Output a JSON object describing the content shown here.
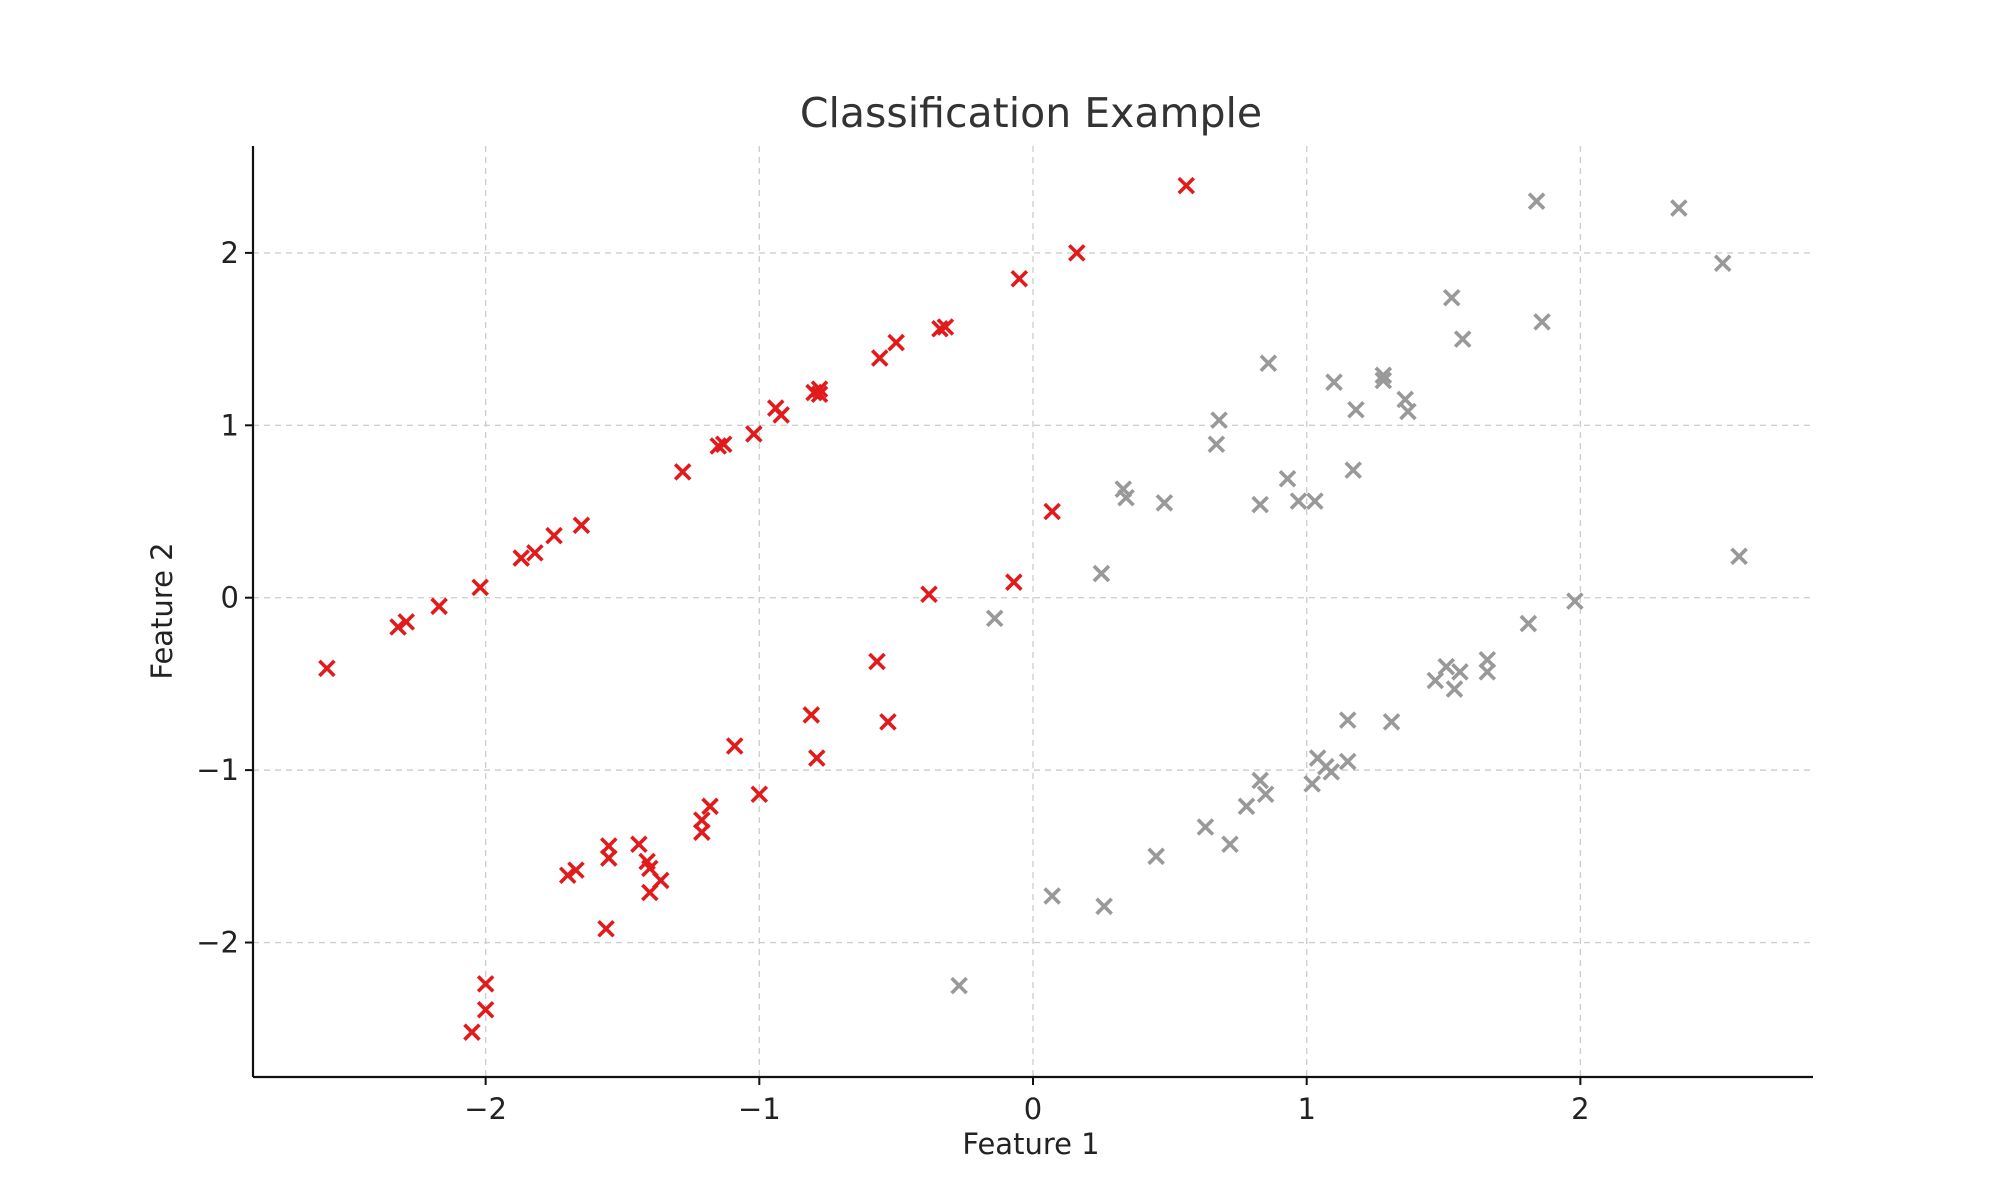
{
  "chart_data": {
    "type": "scatter",
    "title": "Classification Example",
    "xlabel": "Feature 1",
    "ylabel": "Feature 2",
    "xlim": [
      -2.85,
      2.85
    ],
    "ylim": [
      -2.78,
      2.62
    ],
    "xticks": [
      -2,
      -1,
      0,
      1,
      2
    ],
    "yticks": [
      -2,
      -1,
      0,
      1,
      2
    ],
    "xtick_labels": [
      "−2",
      "−1",
      "0",
      "1",
      "2"
    ],
    "ytick_labels": [
      "−2",
      "−1",
      "0",
      "1",
      "2"
    ],
    "grid": true,
    "marker": "x",
    "series": [
      {
        "color": "#e31a1c",
        "points": [
          [
            -2.58,
            -0.41
          ],
          [
            -2.32,
            -0.17
          ],
          [
            -2.29,
            -0.14
          ],
          [
            -2.17,
            -0.05
          ],
          [
            -2.02,
            0.06
          ],
          [
            -1.87,
            0.23
          ],
          [
            -1.82,
            0.26
          ],
          [
            -1.75,
            0.36
          ],
          [
            -1.65,
            0.42
          ],
          [
            -1.28,
            0.73
          ],
          [
            -1.15,
            0.88
          ],
          [
            -1.13,
            0.89
          ],
          [
            -1.02,
            0.95
          ],
          [
            -0.94,
            1.1
          ],
          [
            -0.92,
            1.06
          ],
          [
            -0.8,
            1.19
          ],
          [
            -0.78,
            1.21
          ],
          [
            -0.78,
            1.18
          ],
          [
            -0.56,
            1.39
          ],
          [
            -0.5,
            1.48
          ],
          [
            -0.34,
            1.56
          ],
          [
            -0.32,
            1.57
          ],
          [
            -0.05,
            1.85
          ],
          [
            0.16,
            2.0
          ],
          [
            0.56,
            2.39
          ],
          [
            0.07,
            0.5
          ],
          [
            -0.07,
            0.09
          ],
          [
            -0.38,
            0.02
          ],
          [
            -0.57,
            -0.37
          ],
          [
            -0.53,
            -0.72
          ],
          [
            -0.81,
            -0.68
          ],
          [
            -0.79,
            -0.93
          ],
          [
            -1.09,
            -0.86
          ],
          [
            -1.0,
            -1.14
          ],
          [
            -1.18,
            -1.21
          ],
          [
            -1.21,
            -1.29
          ],
          [
            -1.21,
            -1.36
          ],
          [
            -1.44,
            -1.43
          ],
          [
            -1.41,
            -1.53
          ],
          [
            -1.4,
            -1.57
          ],
          [
            -1.36,
            -1.64
          ],
          [
            -1.4,
            -1.71
          ],
          [
            -1.55,
            -1.44
          ],
          [
            -1.55,
            -1.51
          ],
          [
            -1.67,
            -1.58
          ],
          [
            -1.7,
            -1.61
          ],
          [
            -1.56,
            -1.92
          ],
          [
            -2.0,
            -2.24
          ],
          [
            -2.0,
            -2.39
          ],
          [
            -2.05,
            -2.52
          ]
        ]
      },
      {
        "color": "#999999",
        "points": [
          [
            -0.27,
            -2.25
          ],
          [
            0.07,
            -1.73
          ],
          [
            0.26,
            -1.79
          ],
          [
            0.45,
            -1.5
          ],
          [
            0.63,
            -1.33
          ],
          [
            0.72,
            -1.43
          ],
          [
            0.78,
            -1.21
          ],
          [
            0.83,
            -1.06
          ],
          [
            0.85,
            -1.14
          ],
          [
            1.02,
            -1.08
          ],
          [
            1.04,
            -0.93
          ],
          [
            1.07,
            -0.98
          ],
          [
            1.09,
            -1.01
          ],
          [
            1.15,
            -0.95
          ],
          [
            1.15,
            -0.71
          ],
          [
            1.31,
            -0.72
          ],
          [
            1.47,
            -0.48
          ],
          [
            1.51,
            -0.4
          ],
          [
            1.54,
            -0.53
          ],
          [
            1.56,
            -0.43
          ],
          [
            1.66,
            -0.36
          ],
          [
            1.66,
            -0.43
          ],
          [
            1.81,
            -0.15
          ],
          [
            1.98,
            -0.02
          ],
          [
            -0.14,
            -0.12
          ],
          [
            0.25,
            0.14
          ],
          [
            0.33,
            0.63
          ],
          [
            0.34,
            0.58
          ],
          [
            0.48,
            0.55
          ],
          [
            0.67,
            0.89
          ],
          [
            0.68,
            1.03
          ],
          [
            0.83,
            0.54
          ],
          [
            0.86,
            1.36
          ],
          [
            0.93,
            0.69
          ],
          [
            0.97,
            0.56
          ],
          [
            1.03,
            0.56
          ],
          [
            1.1,
            1.25
          ],
          [
            1.17,
            0.74
          ],
          [
            1.18,
            1.09
          ],
          [
            1.28,
            1.29
          ],
          [
            1.28,
            1.26
          ],
          [
            1.36,
            1.15
          ],
          [
            1.37,
            1.08
          ],
          [
            1.53,
            1.74
          ],
          [
            1.57,
            1.5
          ],
          [
            1.84,
            2.3
          ],
          [
            1.86,
            1.6
          ],
          [
            2.36,
            2.26
          ],
          [
            2.52,
            1.94
          ],
          [
            2.58,
            0.24
          ]
        ]
      }
    ]
  }
}
